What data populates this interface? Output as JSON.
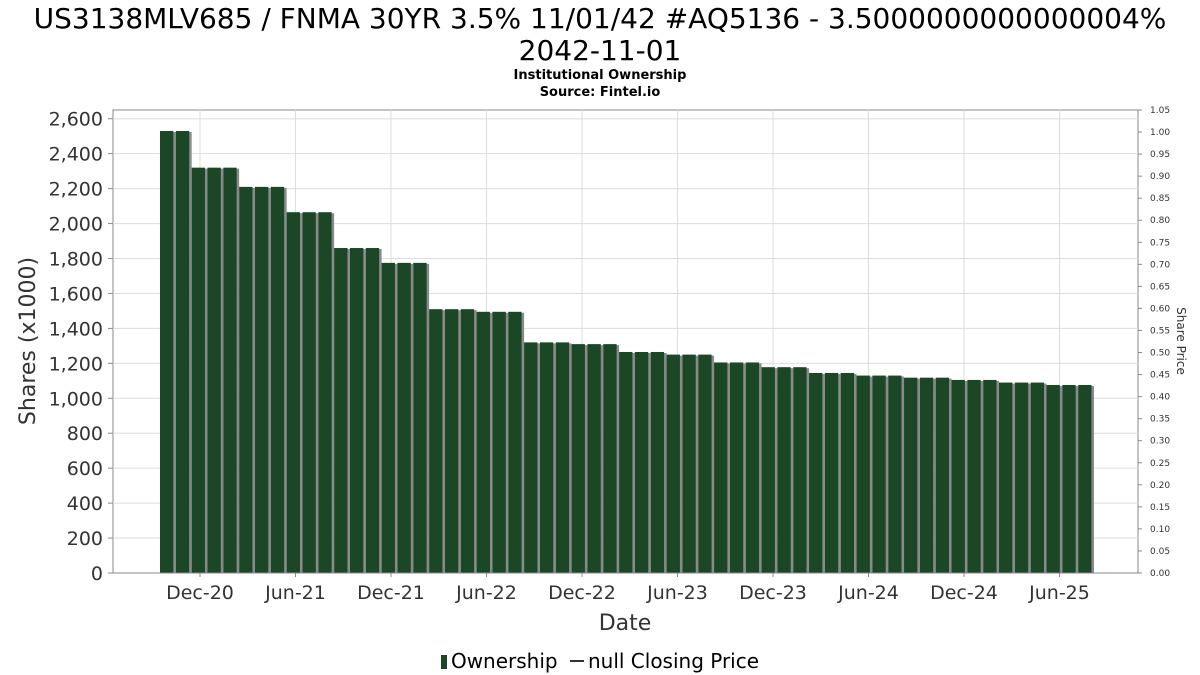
{
  "header": {
    "title_line1": "US3138MLV685 / FNMA 30YR 3.5% 11/01/42 #AQ5136 - 3.5000000000000004%",
    "title_line2": "2042-11-01",
    "subtitle_line1": "Institutional Ownership",
    "subtitle_line2": "Source: Fintel.io"
  },
  "legend": {
    "ownership_label": "Ownership",
    "price_label": "null Closing Price"
  },
  "colors": {
    "bar": "#1b4726",
    "bar_shadow": "#8a8a8a",
    "grid": "#dddddd",
    "axis_text": "#333333"
  },
  "chart_data": {
    "type": "bar",
    "xlabel": "Date",
    "ylabel": "Shares (x1000)",
    "y2label": "Share Price",
    "ylim": [
      0,
      2650
    ],
    "y2lim": [
      0,
      1.05
    ],
    "grid": true,
    "legend_position": "bottom",
    "yticks": [
      0,
      200,
      400,
      600,
      800,
      1000,
      1200,
      1400,
      1600,
      1800,
      2000,
      2200,
      2400,
      2600
    ],
    "ytick_labels": [
      "0",
      "200",
      "400",
      "600",
      "800",
      "1,000",
      "1,200",
      "1,400",
      "1,600",
      "1,800",
      "2,000",
      "2,200",
      "2,400",
      "2,600"
    ],
    "y2ticks": [
      "0.00",
      "0.05",
      "0.10",
      "0.15",
      "0.20",
      "0.25",
      "0.30",
      "0.35",
      "0.40",
      "0.45",
      "0.50",
      "0.55",
      "0.60",
      "0.65",
      "0.70",
      "0.75",
      "0.80",
      "0.85",
      "0.90",
      "0.95",
      "1.00",
      "1.05"
    ],
    "xtick_labels": [
      "Dec-20",
      "Jun-21",
      "Dec-21",
      "Jun-22",
      "Dec-22",
      "Jun-23",
      "Dec-23",
      "Jun-24",
      "Dec-24",
      "Jun-25"
    ],
    "series": [
      {
        "name": "Ownership",
        "values": [
          2530,
          2530,
          2320,
          2320,
          2320,
          2210,
          2210,
          2210,
          2065,
          2065,
          2065,
          1860,
          1860,
          1860,
          1775,
          1775,
          1775,
          1510,
          1510,
          1510,
          1495,
          1495,
          1495,
          1320,
          1320,
          1320,
          1310,
          1310,
          1310,
          1265,
          1265,
          1265,
          1250,
          1250,
          1250,
          1205,
          1205,
          1205,
          1178,
          1178,
          1178,
          1145,
          1145,
          1145,
          1130,
          1130,
          1130,
          1118,
          1118,
          1118,
          1105,
          1105,
          1105,
          1090,
          1090,
          1090,
          1076,
          1076,
          1076
        ]
      }
    ]
  }
}
